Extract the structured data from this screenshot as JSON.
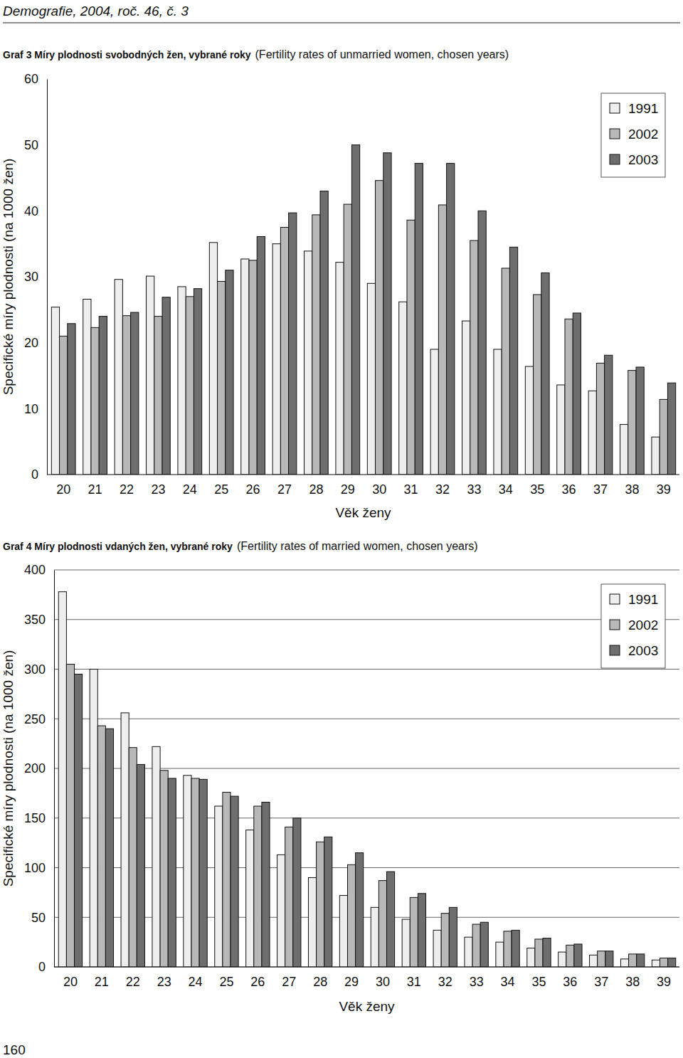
{
  "header": "Demografie, 2004, roč. 46, č. 3",
  "page_number": "160",
  "chart_data": [
    {
      "type": "bar",
      "title": "Graf 3 Míry plodnosti svobodných žen, vybrané roky",
      "subtitle": "(Fertility rates of unmarried women, chosen years)",
      "x_label": "Věk ženy",
      "y_label": "Specifické míry plodnosti (na 1000 žen)",
      "categories": [
        "20",
        "21",
        "22",
        "23",
        "24",
        "25",
        "26",
        "27",
        "28",
        "29",
        "30",
        "31",
        "32",
        "33",
        "34",
        "35",
        "36",
        "37",
        "38",
        "39"
      ],
      "series": [
        {
          "name": "1991",
          "color": "#eeeeee",
          "values": [
            25.4,
            26.6,
            29.6,
            30.1,
            28.5,
            35.2,
            32.7,
            35,
            33.9,
            32.2,
            29,
            26.2,
            19,
            23.3,
            19,
            16.4,
            13.6,
            12.7,
            7.6,
            5.7
          ]
        },
        {
          "name": "2002",
          "color": "#b8b8b8",
          "values": [
            21,
            22.3,
            24.1,
            24,
            27,
            29.3,
            32.5,
            37.5,
            39.4,
            41,
            44.6,
            38.6,
            40.9,
            35.5,
            31.3,
            27.3,
            23.6,
            16.9,
            15.8,
            11.4
          ]
        },
        {
          "name": "2003",
          "color": "#6e6e6e",
          "values": [
            22.9,
            24,
            24.6,
            26.9,
            28.2,
            31,
            36.1,
            39.7,
            43,
            50,
            48.8,
            47.2,
            47.2,
            40,
            34.5,
            30.6,
            24.5,
            18.1,
            16.3,
            13.9
          ]
        }
      ],
      "ylim": [
        0,
        60
      ],
      "yticks": [
        0,
        10,
        20,
        30,
        40,
        50,
        60
      ],
      "grid": false,
      "legend": "upper right"
    },
    {
      "type": "bar",
      "title": "Graf 4 Míry plodnosti vdaných žen, vybrané roky",
      "subtitle": "(Fertility rates of married women, chosen years)",
      "x_label": "Věk ženy",
      "y_label": "Specifické míry plodnosti (na 1000 žen)",
      "categories": [
        "20",
        "21",
        "22",
        "23",
        "24",
        "25",
        "26",
        "27",
        "28",
        "29",
        "30",
        "31",
        "32",
        "33",
        "34",
        "35",
        "36",
        "37",
        "38",
        "39"
      ],
      "series": [
        {
          "name": "1991",
          "color": "#eeeeee",
          "values": [
            378,
            300,
            256,
            222,
            193,
            162,
            138,
            113,
            90,
            72,
            60,
            48,
            37,
            30,
            25,
            19,
            15,
            12,
            8,
            7
          ]
        },
        {
          "name": "2002",
          "color": "#b8b8b8",
          "values": [
            305,
            243,
            221,
            198,
            190,
            176,
            162,
            141,
            126,
            103,
            87,
            70,
            54,
            43,
            36,
            28,
            22,
            16,
            13,
            9
          ]
        },
        {
          "name": "2003",
          "color": "#6e6e6e",
          "values": [
            295,
            240,
            204,
            190,
            189,
            172,
            166,
            150,
            131,
            115,
            96,
            74,
            60,
            45,
            37,
            29,
            23,
            16,
            13,
            9
          ]
        }
      ],
      "ylim": [
        0,
        400
      ],
      "yticks": [
        0,
        50,
        100,
        150,
        200,
        250,
        300,
        350,
        400
      ],
      "grid": true,
      "legend": "upper right"
    }
  ]
}
